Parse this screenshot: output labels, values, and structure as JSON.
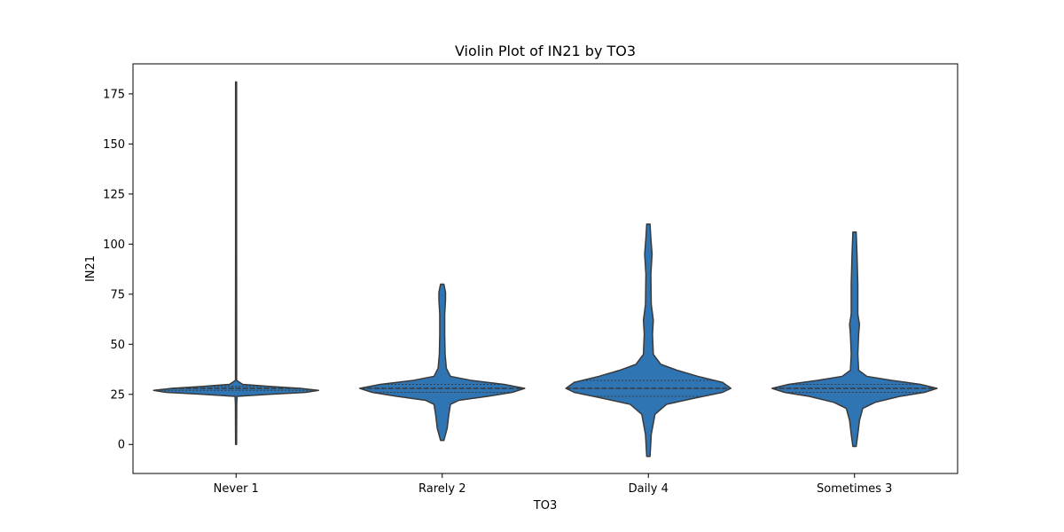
{
  "chart_data": {
    "type": "violin",
    "title": "Violin Plot of IN21 by TO3",
    "xlabel": "TO3",
    "ylabel": "IN21",
    "ylim": [
      -14.5,
      190
    ],
    "yticks": [
      0,
      25,
      50,
      75,
      100,
      125,
      150,
      175
    ],
    "grid": false,
    "legend": "none",
    "colors": {
      "fill": "#2f74b3",
      "edge": "#3a3a3a",
      "axis": "#000000"
    },
    "categories": [
      "Never 1",
      "Rarely 2",
      "Daily 4",
      "Sometimes 3"
    ],
    "violins": [
      {
        "category": "Never 1",
        "min": 0,
        "max": 181,
        "median": 28,
        "q1": 27,
        "q3": 29,
        "density": [
          [
            0,
            0.006
          ],
          [
            10,
            0.007
          ],
          [
            20,
            0.008
          ],
          [
            24,
            0.012
          ],
          [
            25,
            0.4
          ],
          [
            26,
            0.85
          ],
          [
            27,
            1.0
          ],
          [
            28,
            0.78
          ],
          [
            29,
            0.4
          ],
          [
            30,
            0.08
          ],
          [
            32,
            0.007
          ],
          [
            60,
            0.007
          ],
          [
            100,
            0.006
          ],
          [
            140,
            0.006
          ],
          [
            181,
            0.006
          ]
        ]
      },
      {
        "category": "Rarely 2",
        "min": 2,
        "max": 80,
        "median": 28,
        "q1": 26,
        "q3": 30,
        "density": [
          [
            2,
            0.02
          ],
          [
            8,
            0.06
          ],
          [
            15,
            0.08
          ],
          [
            20,
            0.1
          ],
          [
            22,
            0.2
          ],
          [
            24,
            0.55
          ],
          [
            26,
            0.85
          ],
          [
            28,
            1.0
          ],
          [
            30,
            0.75
          ],
          [
            32,
            0.35
          ],
          [
            34,
            0.1
          ],
          [
            38,
            0.05
          ],
          [
            45,
            0.035
          ],
          [
            55,
            0.03
          ],
          [
            65,
            0.03
          ],
          [
            72,
            0.04
          ],
          [
            76,
            0.04
          ],
          [
            80,
            0.02
          ]
        ]
      },
      {
        "category": "Daily 4",
        "min": -6,
        "max": 110,
        "median": 28,
        "q1": 24,
        "q3": 32,
        "density": [
          [
            -6,
            0.02
          ],
          [
            5,
            0.035
          ],
          [
            15,
            0.08
          ],
          [
            20,
            0.22
          ],
          [
            23,
            0.55
          ],
          [
            26,
            0.9
          ],
          [
            28,
            1.0
          ],
          [
            31,
            0.9
          ],
          [
            34,
            0.6
          ],
          [
            37,
            0.35
          ],
          [
            40,
            0.15
          ],
          [
            45,
            0.06
          ],
          [
            55,
            0.05
          ],
          [
            62,
            0.06
          ],
          [
            70,
            0.035
          ],
          [
            85,
            0.03
          ],
          [
            95,
            0.045
          ],
          [
            103,
            0.03
          ],
          [
            110,
            0.02
          ]
        ]
      },
      {
        "category": "Sometimes 3",
        "min": -1,
        "max": 106,
        "median": 28,
        "q1": 26,
        "q3": 30,
        "density": [
          [
            -1,
            0.02
          ],
          [
            5,
            0.04
          ],
          [
            12,
            0.06
          ],
          [
            18,
            0.1
          ],
          [
            21,
            0.25
          ],
          [
            24,
            0.55
          ],
          [
            26,
            0.85
          ],
          [
            28,
            1.0
          ],
          [
            30,
            0.8
          ],
          [
            32,
            0.45
          ],
          [
            34,
            0.15
          ],
          [
            37,
            0.05
          ],
          [
            45,
            0.04
          ],
          [
            55,
            0.05
          ],
          [
            60,
            0.06
          ],
          [
            65,
            0.04
          ],
          [
            80,
            0.04
          ],
          [
            95,
            0.03
          ],
          [
            106,
            0.02
          ]
        ]
      }
    ]
  }
}
